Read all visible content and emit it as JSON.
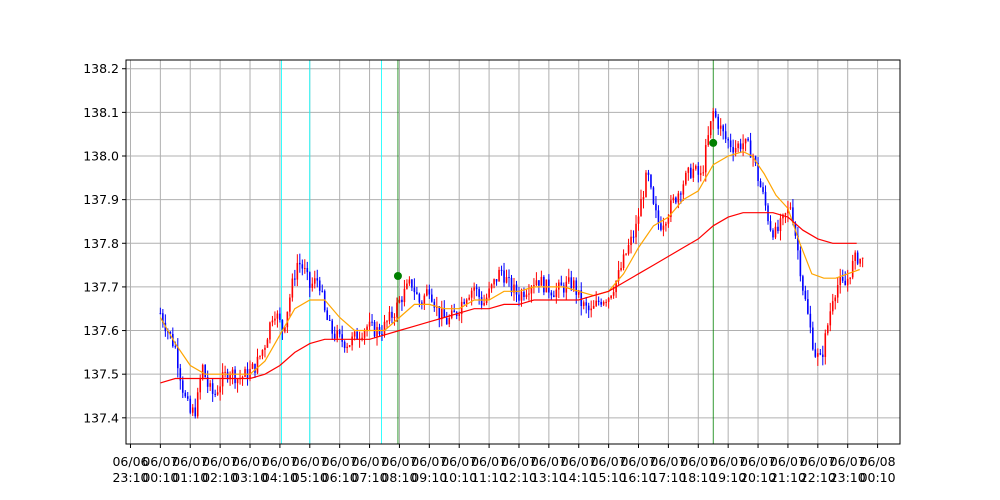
{
  "chart_data": {
    "type": "candlestick",
    "title": "",
    "xlabel": "",
    "ylabel": "",
    "ylim": [
      137.34,
      138.22
    ],
    "grid": true,
    "legend": "none",
    "yticks": [
      "137.4",
      "137.5",
      "137.6",
      "137.7",
      "137.8",
      "137.9",
      "138.0",
      "138.1",
      "138.2"
    ],
    "xticks": [
      {
        "top": "06/06",
        "bottom": "23:10"
      },
      {
        "top": "06/07",
        "bottom": "00:10"
      },
      {
        "top": "06/07",
        "bottom": "01:10"
      },
      {
        "top": "06/07",
        "bottom": "02:10"
      },
      {
        "top": "06/07",
        "bottom": "03:10"
      },
      {
        "top": "06/07",
        "bottom": "04:10"
      },
      {
        "top": "06/07",
        "bottom": "05:10"
      },
      {
        "top": "06/07",
        "bottom": "06:10"
      },
      {
        "top": "06/07",
        "bottom": "07:10"
      },
      {
        "top": "06/07",
        "bottom": "08:10"
      },
      {
        "top": "06/07",
        "bottom": "09:10"
      },
      {
        "top": "06/07",
        "bottom": "10:10"
      },
      {
        "top": "06/07",
        "bottom": "11:10"
      },
      {
        "top": "06/07",
        "bottom": "12:10"
      },
      {
        "top": "06/07",
        "bottom": "13:10"
      },
      {
        "top": "06/07",
        "bottom": "14:10"
      },
      {
        "top": "06/07",
        "bottom": "15:10"
      },
      {
        "top": "06/07",
        "bottom": "16:10"
      },
      {
        "top": "06/07",
        "bottom": "17:10"
      },
      {
        "top": "06/07",
        "bottom": "18:10"
      },
      {
        "top": "06/07",
        "bottom": "19:10"
      },
      {
        "top": "06/07",
        "bottom": "20:10"
      },
      {
        "top": "06/07",
        "bottom": "21:10"
      },
      {
        "top": "06/07",
        "bottom": "22:10"
      },
      {
        "top": "06/07",
        "bottom": "23:10"
      },
      {
        "top": "06/08",
        "bottom": "00:10"
      }
    ],
    "x_range_hours": [
      -1.15,
      24.75
    ],
    "price_path": [
      [
        0.0,
        137.64
      ],
      [
        0.25,
        137.6
      ],
      [
        0.5,
        137.56
      ],
      [
        0.8,
        137.45
      ],
      [
        1.0,
        137.41
      ],
      [
        1.2,
        137.42
      ],
      [
        1.4,
        137.52
      ],
      [
        1.6,
        137.47
      ],
      [
        1.8,
        137.45
      ],
      [
        2.0,
        137.48
      ],
      [
        2.3,
        137.51
      ],
      [
        2.6,
        137.49
      ],
      [
        2.9,
        137.5
      ],
      [
        3.2,
        137.52
      ],
      [
        3.5,
        137.57
      ],
      [
        3.8,
        137.65
      ],
      [
        4.1,
        137.6
      ],
      [
        4.4,
        137.7
      ],
      [
        4.6,
        137.76
      ],
      [
        4.8,
        137.74
      ],
      [
        5.0,
        137.7
      ],
      [
        5.3,
        137.72
      ],
      [
        5.5,
        137.64
      ],
      [
        5.7,
        137.6
      ],
      [
        6.0,
        137.58
      ],
      [
        6.3,
        137.57
      ],
      [
        6.6,
        137.59
      ],
      [
        6.9,
        137.61
      ],
      [
        7.2,
        137.6
      ],
      [
        7.4,
        137.6
      ],
      [
        7.6,
        137.62
      ],
      [
        7.8,
        137.64
      ],
      [
        8.1,
        137.68
      ],
      [
        8.4,
        137.71
      ],
      [
        8.7,
        137.66
      ],
      [
        9.0,
        137.7
      ],
      [
        9.3,
        137.64
      ],
      [
        9.6,
        137.62
      ],
      [
        9.9,
        137.64
      ],
      [
        10.2,
        137.68
      ],
      [
        10.5,
        137.7
      ],
      [
        10.8,
        137.66
      ],
      [
        11.1,
        137.7
      ],
      [
        11.4,
        137.74
      ],
      [
        11.7,
        137.7
      ],
      [
        12.0,
        137.68
      ],
      [
        12.3,
        137.7
      ],
      [
        12.6,
        137.72
      ],
      [
        12.9,
        137.7
      ],
      [
        13.2,
        137.69
      ],
      [
        13.5,
        137.7
      ],
      [
        13.8,
        137.71
      ],
      [
        14.1,
        137.66
      ],
      [
        14.4,
        137.64
      ],
      [
        14.7,
        137.67
      ],
      [
        15.0,
        137.68
      ],
      [
        15.3,
        137.72
      ],
      [
        15.6,
        137.78
      ],
      [
        15.9,
        137.83
      ],
      [
        16.1,
        137.9
      ],
      [
        16.3,
        137.96
      ],
      [
        16.5,
        137.88
      ],
      [
        16.7,
        137.84
      ],
      [
        16.9,
        137.86
      ],
      [
        17.2,
        137.9
      ],
      [
        17.5,
        137.94
      ],
      [
        17.8,
        137.97
      ],
      [
        18.1,
        137.95
      ],
      [
        18.3,
        138.03
      ],
      [
        18.5,
        138.1
      ],
      [
        18.7,
        138.07
      ],
      [
        18.9,
        138.04
      ],
      [
        19.2,
        138.02
      ],
      [
        19.5,
        138.03
      ],
      [
        19.8,
        138.01
      ],
      [
        20.0,
        137.95
      ],
      [
        20.2,
        137.9
      ],
      [
        20.4,
        137.84
      ],
      [
        20.6,
        137.82
      ],
      [
        20.9,
        137.86
      ],
      [
        21.1,
        137.89
      ],
      [
        21.3,
        137.8
      ],
      [
        21.5,
        137.7
      ],
      [
        21.7,
        137.62
      ],
      [
        21.9,
        137.55
      ],
      [
        22.1,
        137.53
      ],
      [
        22.3,
        137.6
      ],
      [
        22.5,
        137.68
      ],
      [
        22.7,
        137.71
      ],
      [
        22.9,
        137.7
      ],
      [
        23.1,
        137.74
      ],
      [
        23.3,
        137.77
      ],
      [
        23.5,
        137.76
      ]
    ],
    "series": [
      {
        "color": "#ffa500",
        "points": [
          [
            0.0,
            137.63
          ],
          [
            0.5,
            137.57
          ],
          [
            1.0,
            137.52
          ],
          [
            1.5,
            137.5
          ],
          [
            2.0,
            137.5
          ],
          [
            2.5,
            137.5
          ],
          [
            3.0,
            137.5
          ],
          [
            3.5,
            137.53
          ],
          [
            4.0,
            137.59
          ],
          [
            4.5,
            137.65
          ],
          [
            5.0,
            137.67
          ],
          [
            5.5,
            137.67
          ],
          [
            6.0,
            137.63
          ],
          [
            6.5,
            137.6
          ],
          [
            7.0,
            137.6
          ],
          [
            7.5,
            137.6
          ],
          [
            8.0,
            137.63
          ],
          [
            8.5,
            137.66
          ],
          [
            9.0,
            137.66
          ],
          [
            9.5,
            137.65
          ],
          [
            10.0,
            137.65
          ],
          [
            10.5,
            137.67
          ],
          [
            11.0,
            137.67
          ],
          [
            11.5,
            137.69
          ],
          [
            12.0,
            137.69
          ],
          [
            12.5,
            137.7
          ],
          [
            13.0,
            137.7
          ],
          [
            13.5,
            137.7
          ],
          [
            14.0,
            137.69
          ],
          [
            14.5,
            137.68
          ],
          [
            15.0,
            137.69
          ],
          [
            15.5,
            137.73
          ],
          [
            16.0,
            137.79
          ],
          [
            16.5,
            137.84
          ],
          [
            17.0,
            137.86
          ],
          [
            17.5,
            137.9
          ],
          [
            18.0,
            137.92
          ],
          [
            18.5,
            137.98
          ],
          [
            19.0,
            138.0
          ],
          [
            19.5,
            138.01
          ],
          [
            19.8,
            138.0
          ],
          [
            20.2,
            137.96
          ],
          [
            20.6,
            137.91
          ],
          [
            21.0,
            137.88
          ],
          [
            21.4,
            137.8
          ],
          [
            21.8,
            137.73
          ],
          [
            22.2,
            137.72
          ],
          [
            22.6,
            137.72
          ],
          [
            23.0,
            137.73
          ],
          [
            23.4,
            137.74
          ]
        ]
      },
      {
        "color": "#ff0000",
        "points": [
          [
            0.0,
            137.48
          ],
          [
            0.5,
            137.49
          ],
          [
            1.0,
            137.49
          ],
          [
            1.5,
            137.49
          ],
          [
            2.0,
            137.49
          ],
          [
            2.5,
            137.49
          ],
          [
            3.0,
            137.49
          ],
          [
            3.5,
            137.5
          ],
          [
            4.0,
            137.52
          ],
          [
            4.5,
            137.55
          ],
          [
            5.0,
            137.57
          ],
          [
            5.5,
            137.58
          ],
          [
            6.0,
            137.58
          ],
          [
            6.5,
            137.58
          ],
          [
            7.0,
            137.58
          ],
          [
            7.5,
            137.59
          ],
          [
            8.0,
            137.6
          ],
          [
            8.5,
            137.61
          ],
          [
            9.0,
            137.62
          ],
          [
            9.5,
            137.63
          ],
          [
            10.0,
            137.64
          ],
          [
            10.5,
            137.65
          ],
          [
            11.0,
            137.65
          ],
          [
            11.5,
            137.66
          ],
          [
            12.0,
            137.66
          ],
          [
            12.5,
            137.67
          ],
          [
            13.0,
            137.67
          ],
          [
            13.5,
            137.67
          ],
          [
            14.0,
            137.67
          ],
          [
            14.5,
            137.68
          ],
          [
            15.0,
            137.69
          ],
          [
            15.5,
            137.71
          ],
          [
            16.0,
            137.73
          ],
          [
            16.5,
            137.75
          ],
          [
            17.0,
            137.77
          ],
          [
            17.5,
            137.79
          ],
          [
            18.0,
            137.81
          ],
          [
            18.5,
            137.84
          ],
          [
            19.0,
            137.86
          ],
          [
            19.5,
            137.87
          ],
          [
            20.0,
            137.87
          ],
          [
            20.5,
            137.87
          ],
          [
            21.0,
            137.86
          ],
          [
            21.5,
            137.83
          ],
          [
            22.0,
            137.81
          ],
          [
            22.5,
            137.8
          ],
          [
            23.0,
            137.8
          ],
          [
            23.3,
            137.8
          ]
        ]
      }
    ],
    "vlines": [
      {
        "x": 4.05,
        "color": "#00ffff"
      },
      {
        "x": 5.0,
        "color": "#00ffff"
      },
      {
        "x": 7.4,
        "color": "#00ffff"
      },
      {
        "x": 7.95,
        "color": "#008000"
      },
      {
        "x": 18.5,
        "color": "#008000"
      }
    ],
    "markers": [
      {
        "x": 7.95,
        "y": 137.725,
        "color": "#008000"
      },
      {
        "x": 18.5,
        "y": 138.03,
        "color": "#008000"
      }
    ],
    "colors": {
      "up": "#ff0000",
      "down": "#0000ff",
      "grid": "#b0b0b0"
    }
  }
}
